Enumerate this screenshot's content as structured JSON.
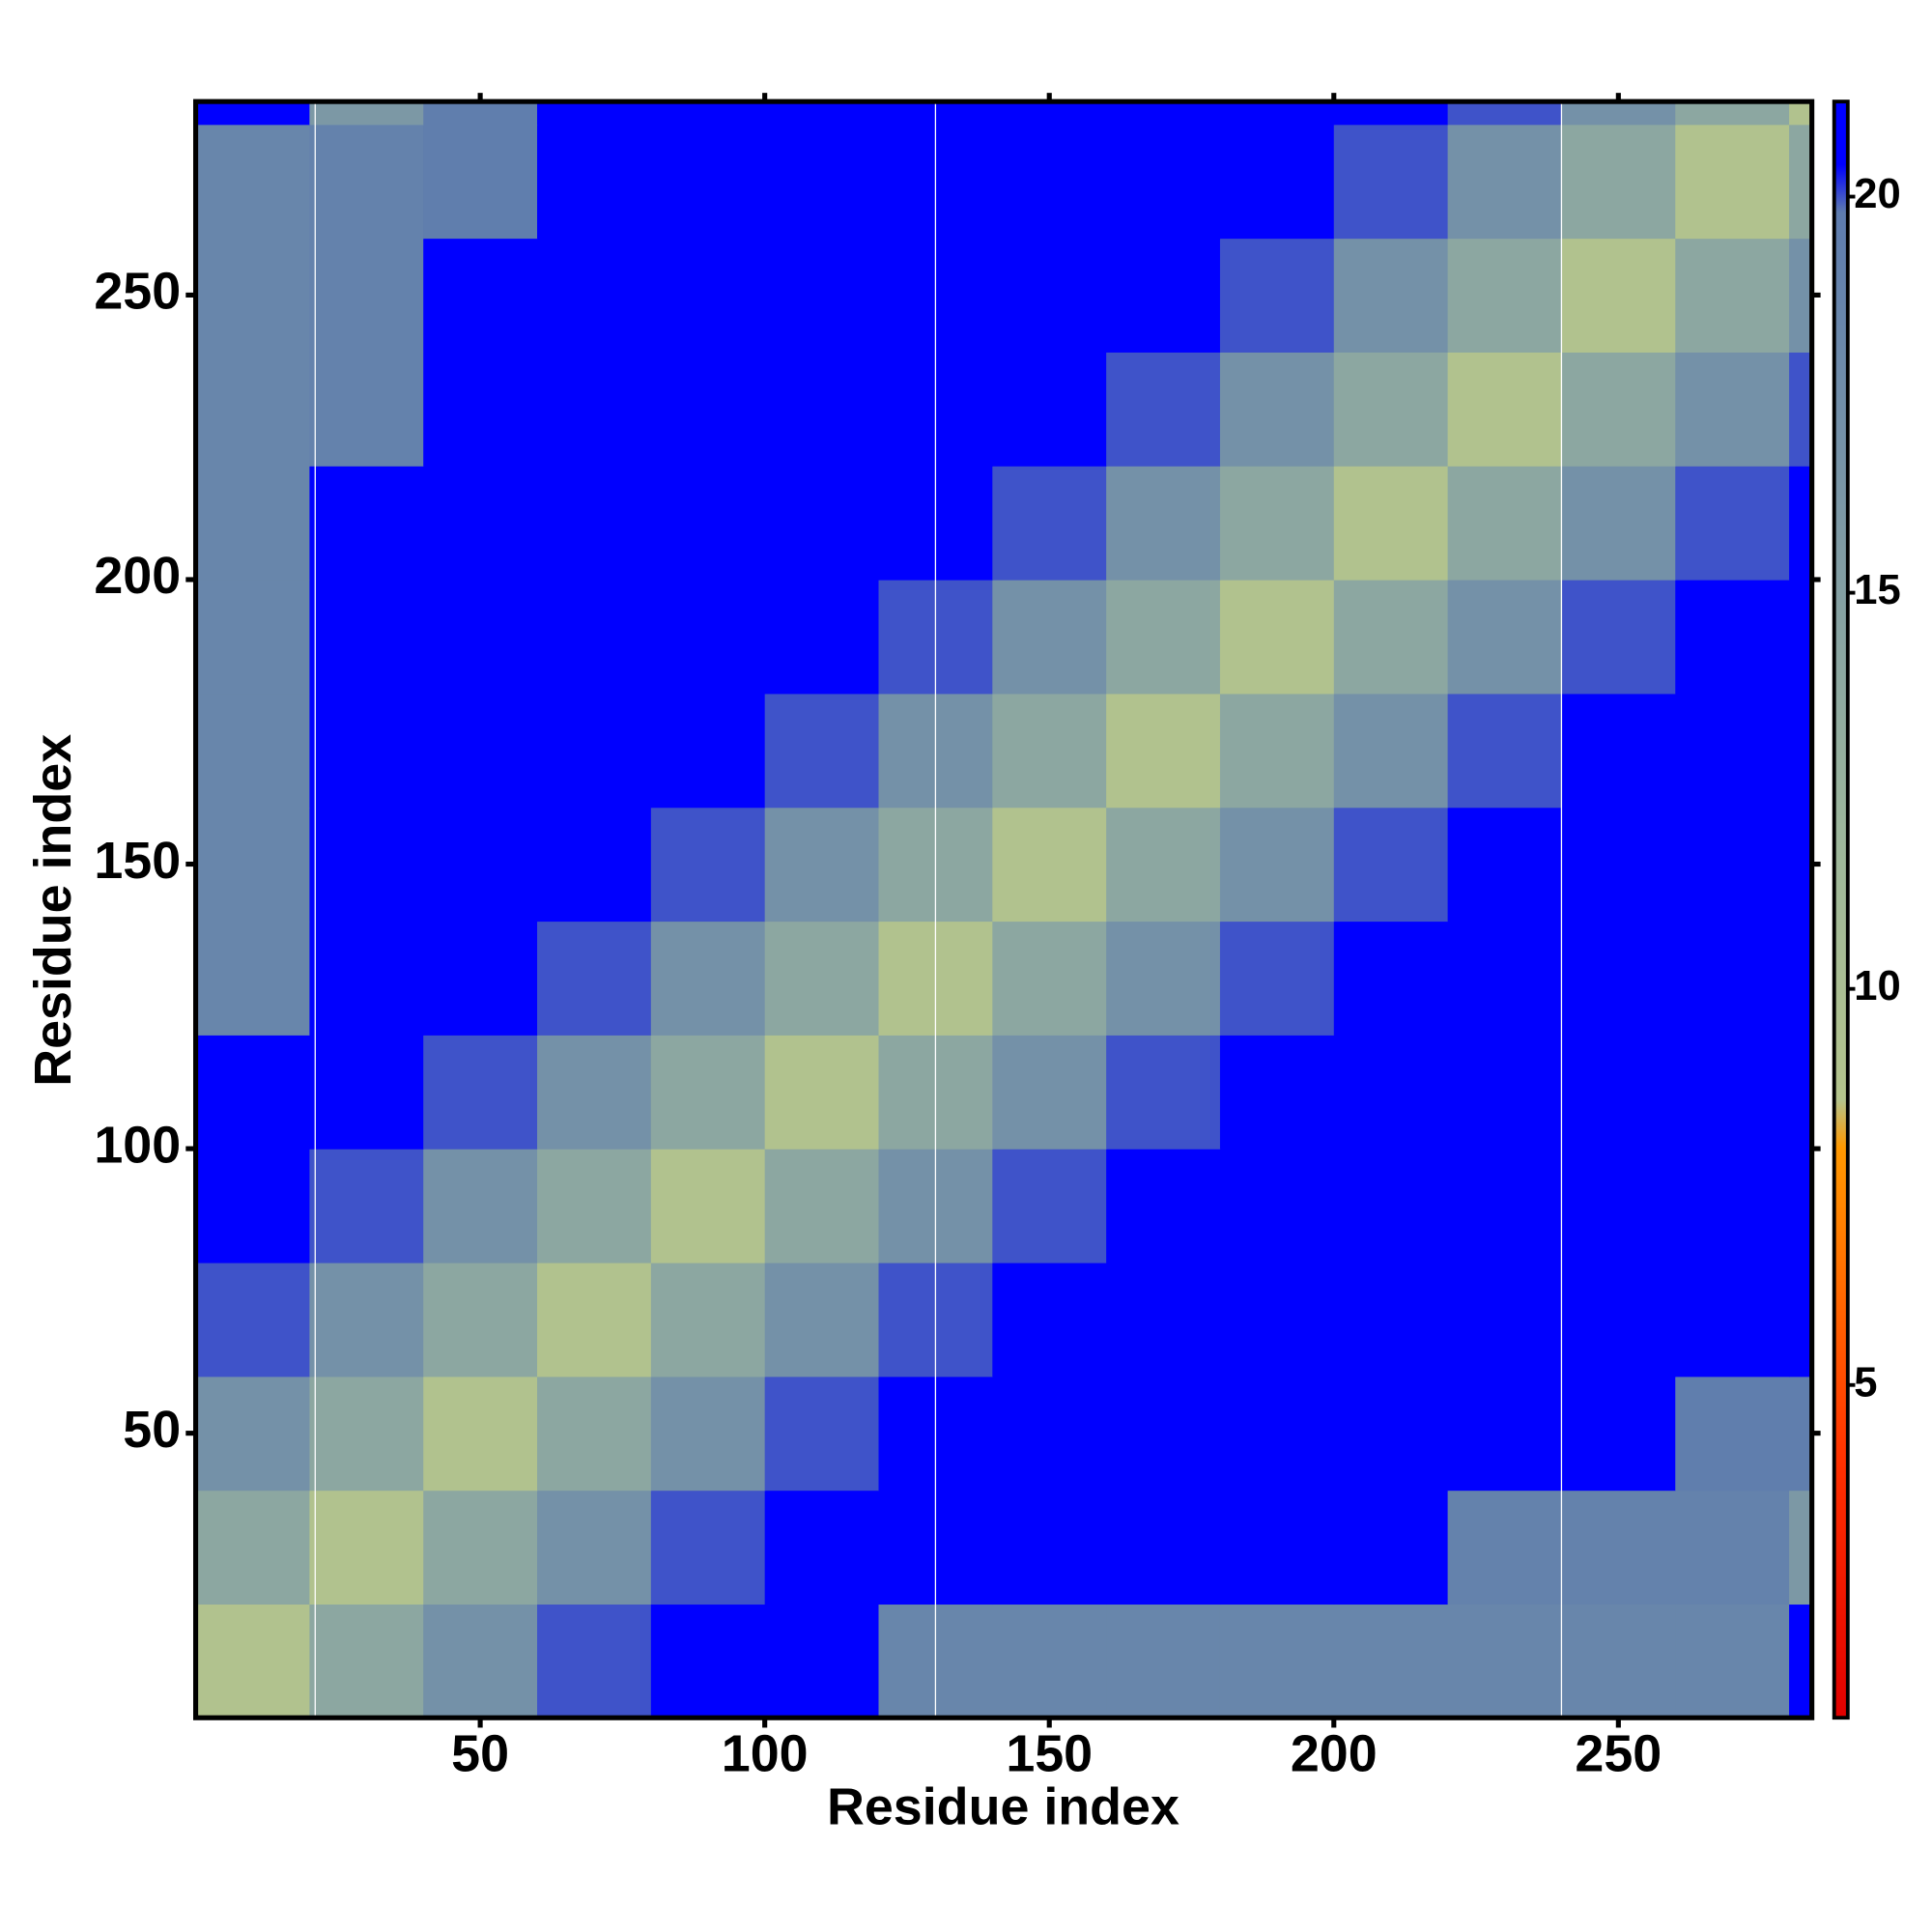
{
  "chart_data": {
    "type": "heatmap",
    "x_label": "Residue index",
    "y_label": "Residue index",
    "x_bins": [
      0,
      20,
      40,
      60,
      80,
      100,
      120,
      140,
      160,
      180,
      200,
      220,
      240,
      260,
      280,
      284
    ],
    "y_bins": [
      0,
      20,
      40,
      60,
      80,
      100,
      120,
      140,
      160,
      180,
      200,
      220,
      240,
      260,
      280,
      284
    ],
    "z": [
      [
        9,
        14,
        17,
        20,
        21.2,
        21.2,
        18.5,
        18.5,
        18.5,
        18.5,
        18.5,
        18.5,
        18.5,
        18.5,
        20.5
      ],
      [
        14,
        9,
        14,
        17,
        20,
        21.2,
        21.2,
        21.2,
        21.2,
        21.2,
        21.2,
        19,
        19,
        19,
        16
      ],
      [
        17,
        14,
        9,
        14,
        17,
        20,
        21.2,
        21.2,
        21.2,
        21.2,
        21.2,
        21.2,
        21.2,
        19.5,
        19.5
      ],
      [
        20,
        17,
        14,
        9,
        14,
        17,
        20,
        21.2,
        21.2,
        21.2,
        21.2,
        21.2,
        21.2,
        21.2,
        21.2
      ],
      [
        21.2,
        20,
        17,
        14,
        9,
        14,
        17,
        20,
        21.2,
        21.2,
        21.2,
        21.2,
        21.2,
        21.2,
        21.2
      ],
      [
        21.2,
        21.2,
        20,
        17,
        14,
        9,
        14,
        17,
        20,
        21.2,
        21.2,
        21.2,
        21.2,
        21.2,
        21.2
      ],
      [
        18.5,
        21.2,
        21.2,
        20,
        17,
        14,
        9,
        14,
        17,
        20,
        21.2,
        21.2,
        21.2,
        21.2,
        21.2
      ],
      [
        18.5,
        21.2,
        21.2,
        21.2,
        20,
        17,
        14,
        9,
        14,
        17,
        20,
        21.2,
        21.2,
        21.2,
        21.2
      ],
      [
        18.5,
        21.2,
        21.2,
        21.2,
        21.2,
        20,
        17,
        14,
        9,
        14,
        17,
        20,
        21.2,
        21.2,
        21.2
      ],
      [
        18.5,
        21.2,
        21.2,
        21.2,
        21.2,
        21.2,
        20,
        17,
        14,
        9,
        14,
        17,
        20,
        21.2,
        21.2
      ],
      [
        18.5,
        21.2,
        21.2,
        21.2,
        21.2,
        21.2,
        21.2,
        20,
        17,
        14,
        9,
        14,
        17,
        20,
        21.2
      ],
      [
        18.5,
        19,
        21.2,
        21.2,
        21.2,
        21.2,
        21.2,
        21.2,
        20,
        17,
        14,
        9,
        14,
        17,
        20
      ],
      [
        18.5,
        19,
        21.2,
        21.2,
        21.2,
        21.2,
        21.2,
        21.2,
        21.2,
        20,
        17,
        14,
        9,
        14,
        17
      ],
      [
        18.5,
        19,
        19.5,
        21.2,
        21.2,
        21.2,
        21.2,
        21.2,
        21.2,
        21.2,
        20,
        17,
        14,
        9,
        14
      ],
      [
        20.5,
        16,
        19.5,
        21.2,
        21.2,
        21.2,
        21.2,
        21.2,
        21.2,
        21.2,
        21.2,
        20,
        17,
        14,
        9
      ]
    ],
    "xlim": [
      0,
      284
    ],
    "ylim": [
      0,
      284
    ],
    "xticks": [
      50,
      100,
      150,
      200,
      250
    ],
    "yticks": [
      50,
      100,
      150,
      200,
      250
    ],
    "zlim": [
      0.8,
      21.2
    ],
    "zticks": [
      5,
      10,
      15,
      20
    ],
    "colorscale": [
      [
        0.8,
        "#e00000"
      ],
      [
        4,
        "#ff3000"
      ],
      [
        8,
        "#ff9900"
      ],
      [
        8.6,
        "#b4c48c"
      ],
      [
        12,
        "#9cb69c"
      ],
      [
        19.8,
        "#5e7cae"
      ],
      [
        20.4,
        "#0000ff"
      ],
      [
        21.2,
        "#0000ff"
      ]
    ],
    "vlines": [
      21,
      130,
      240
    ],
    "vline_color": "#ffffff"
  }
}
